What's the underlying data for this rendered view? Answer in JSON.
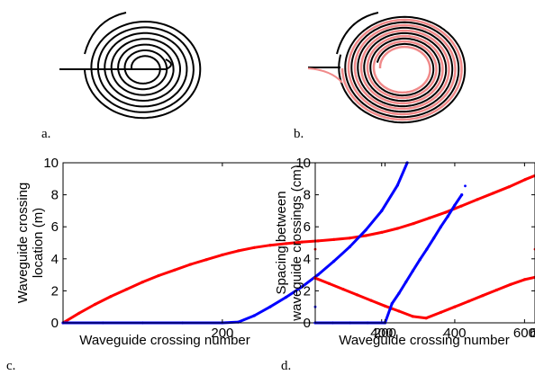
{
  "panels": {
    "a": "a.",
    "b": "b.",
    "c": "c.",
    "d": "d."
  },
  "colors": {
    "black": "#000000",
    "red": "#ff0000",
    "blue": "#0000ff",
    "pink": "#f08a8a"
  },
  "chart_data": [
    {
      "type": "scatter",
      "panel": "c",
      "title": "",
      "xlabel": "Waveguide crossing number",
      "ylabel_lines": [
        "Waveguide crossing",
        "location (m)"
      ],
      "xlim": [
        0,
        640
      ],
      "ylim": [
        0,
        10
      ],
      "xticks": [
        200,
        400,
        600
      ],
      "yticks": [
        0,
        2,
        4,
        6,
        8,
        10
      ],
      "grid": false,
      "series": [
        {
          "color": "red",
          "x": [
            0,
            20,
            40,
            60,
            80,
            100,
            120,
            140,
            160,
            180,
            200,
            220,
            240,
            260,
            280,
            300,
            320,
            340,
            360,
            380,
            400,
            420,
            440,
            460,
            480,
            500,
            520,
            540,
            560,
            580,
            600,
            620,
            635
          ],
          "y": [
            0,
            0.6,
            1.15,
            1.65,
            2.1,
            2.55,
            2.95,
            3.3,
            3.65,
            3.95,
            4.25,
            4.5,
            4.7,
            4.85,
            4.95,
            5.05,
            5.12,
            5.2,
            5.3,
            5.45,
            5.65,
            5.9,
            6.2,
            6.55,
            6.9,
            7.3,
            7.7,
            8.1,
            8.5,
            8.95,
            9.35,
            9.75,
            10
          ]
        },
        {
          "color": "blue",
          "x": [
            0,
            50,
            100,
            150,
            200,
            220,
            240,
            260,
            280,
            300,
            320,
            340,
            360,
            380,
            400,
            420,
            432
          ],
          "y": [
            0,
            0,
            0,
            0,
            0,
            0.05,
            0.45,
            1.0,
            1.6,
            2.25,
            3.0,
            3.85,
            4.75,
            5.8,
            7.0,
            8.6,
            10
          ]
        }
      ]
    },
    {
      "type": "scatter",
      "panel": "d",
      "title": "",
      "xlabel": "Waveguide crossing number",
      "ylabel_lines": [
        "Spacing between",
        "waveguide crossings (cm)"
      ],
      "xlim": [
        0,
        630
      ],
      "ylim": [
        0,
        10
      ],
      "xticks": [
        200,
        400,
        600
      ],
      "yticks": [
        0,
        2,
        4,
        6,
        8,
        10
      ],
      "grid": false,
      "series": [
        {
          "color": "red",
          "x": [
            0,
            40,
            80,
            120,
            160,
            200,
            240,
            280,
            318,
            360,
            400,
            440,
            480,
            520,
            560,
            600,
            630
          ],
          "y": [
            2.8,
            2.45,
            2.1,
            1.75,
            1.4,
            1.05,
            0.73,
            0.4,
            0.3,
            0.65,
            1.0,
            1.35,
            1.7,
            2.05,
            2.4,
            2.7,
            2.85
          ]
        },
        {
          "color": "blue",
          "x": [
            0,
            50,
            100,
            150,
            200,
            220,
            240,
            260,
            280,
            300,
            320,
            340,
            360,
            380,
            400,
            420
          ],
          "y": [
            0,
            0,
            0,
            0,
            0,
            1.2,
            1.85,
            2.55,
            3.25,
            3.95,
            4.6,
            5.3,
            6.0,
            6.65,
            7.35,
            8.0
          ]
        },
        {
          "color": "red",
          "x": [
            0,
            630
          ],
          "y": [
            4.6,
            4.6
          ]
        },
        {
          "color": "blue",
          "x": [
            0,
            215,
            430
          ],
          "y": [
            1.0,
            0.85,
            8.55
          ]
        }
      ]
    }
  ]
}
